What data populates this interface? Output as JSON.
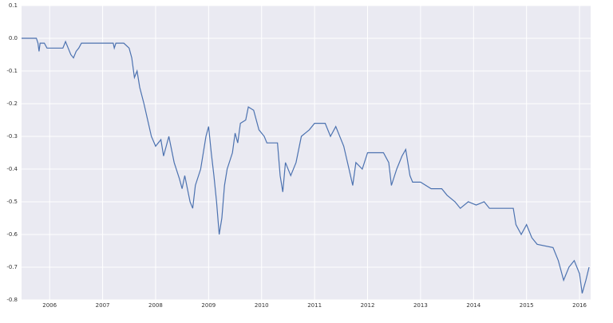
{
  "chart_data": {
    "type": "line",
    "x": [
      2005.47,
      2005.75,
      2005.78,
      2005.8,
      2005.82,
      2005.9,
      2005.95,
      2006.25,
      2006.3,
      2006.35,
      2006.4,
      2006.45,
      2006.5,
      2006.55,
      2006.6,
      2007.2,
      2007.22,
      2007.25,
      2007.4,
      2007.5,
      2007.55,
      2007.6,
      2007.65,
      2007.7,
      2007.78,
      2007.85,
      2007.92,
      2008.0,
      2008.1,
      2008.15,
      2008.25,
      2008.35,
      2008.45,
      2008.5,
      2008.55,
      2008.65,
      2008.7,
      2008.75,
      2008.85,
      2008.95,
      2009.0,
      2009.05,
      2009.1,
      2009.15,
      2009.2,
      2009.25,
      2009.3,
      2009.35,
      2009.45,
      2009.5,
      2009.55,
      2009.6,
      2009.7,
      2009.75,
      2009.85,
      2009.95,
      2010.05,
      2010.1,
      2010.3,
      2010.35,
      2010.4,
      2010.45,
      2010.55,
      2010.65,
      2010.75,
      2010.9,
      2011.0,
      2011.2,
      2011.3,
      2011.4,
      2011.55,
      2011.65,
      2011.72,
      2011.78,
      2011.9,
      2012.0,
      2012.3,
      2012.4,
      2012.45,
      2012.55,
      2012.65,
      2012.72,
      2012.8,
      2012.85,
      2013.0,
      2013.2,
      2013.4,
      2013.5,
      2013.65,
      2013.75,
      2013.9,
      2014.05,
      2014.2,
      2014.3,
      2014.5,
      2014.75,
      2014.8,
      2014.9,
      2015.0,
      2015.1,
      2015.2,
      2015.5,
      2015.6,
      2015.7,
      2015.8,
      2015.9,
      2016.0,
      2016.05,
      2016.12,
      2016.18
    ],
    "series": [
      {
        "color": "#4c72b0",
        "values": [
          0,
          0,
          -0.015,
          -0.04,
          -0.015,
          -0.015,
          -0.03,
          -0.03,
          -0.01,
          -0.03,
          -0.05,
          -0.06,
          -0.04,
          -0.03,
          -0.015,
          -0.015,
          -0.03,
          -0.015,
          -0.015,
          -0.03,
          -0.06,
          -0.12,
          -0.1,
          -0.15,
          -0.2,
          -0.25,
          -0.3,
          -0.33,
          -0.31,
          -0.36,
          -0.3,
          -0.38,
          -0.43,
          -0.46,
          -0.42,
          -0.5,
          -0.52,
          -0.45,
          -0.4,
          -0.3,
          -0.27,
          -0.35,
          -0.42,
          -0.5,
          -0.6,
          -0.55,
          -0.45,
          -0.4,
          -0.35,
          -0.29,
          -0.32,
          -0.26,
          -0.25,
          -0.21,
          -0.22,
          -0.28,
          -0.3,
          -0.32,
          -0.32,
          -0.42,
          -0.47,
          -0.38,
          -0.42,
          -0.38,
          -0.3,
          -0.28,
          -0.26,
          -0.26,
          -0.3,
          -0.27,
          -0.33,
          -0.4,
          -0.45,
          -0.38,
          -0.4,
          -0.35,
          -0.35,
          -0.38,
          -0.45,
          -0.4,
          -0.36,
          -0.34,
          -0.42,
          -0.44,
          -0.44,
          -0.46,
          -0.46,
          -0.48,
          -0.5,
          -0.52,
          -0.5,
          -0.51,
          -0.5,
          -0.52,
          -0.52,
          -0.52,
          -0.57,
          -0.6,
          -0.57,
          -0.61,
          -0.63,
          -0.64,
          -0.68,
          -0.74,
          -0.7,
          -0.68,
          -0.72,
          -0.78,
          -0.74,
          -0.7
        ]
      }
    ],
    "xlim": [
      2005.47,
      2016.21
    ],
    "xticks": [
      2006,
      2007,
      2008,
      2009,
      2010,
      2011,
      2012,
      2013,
      2014,
      2015,
      2016
    ],
    "ylim": [
      -0.8,
      0.1
    ],
    "yticks": [
      0.1,
      {
        "value": 0,
        "label": "0.0"
      },
      -0.1,
      -0.2,
      -0.3,
      -0.4,
      -0.5,
      -0.6,
      -0.7,
      -0.8
    ],
    "grid": true,
    "background": "#eaeaf2"
  }
}
